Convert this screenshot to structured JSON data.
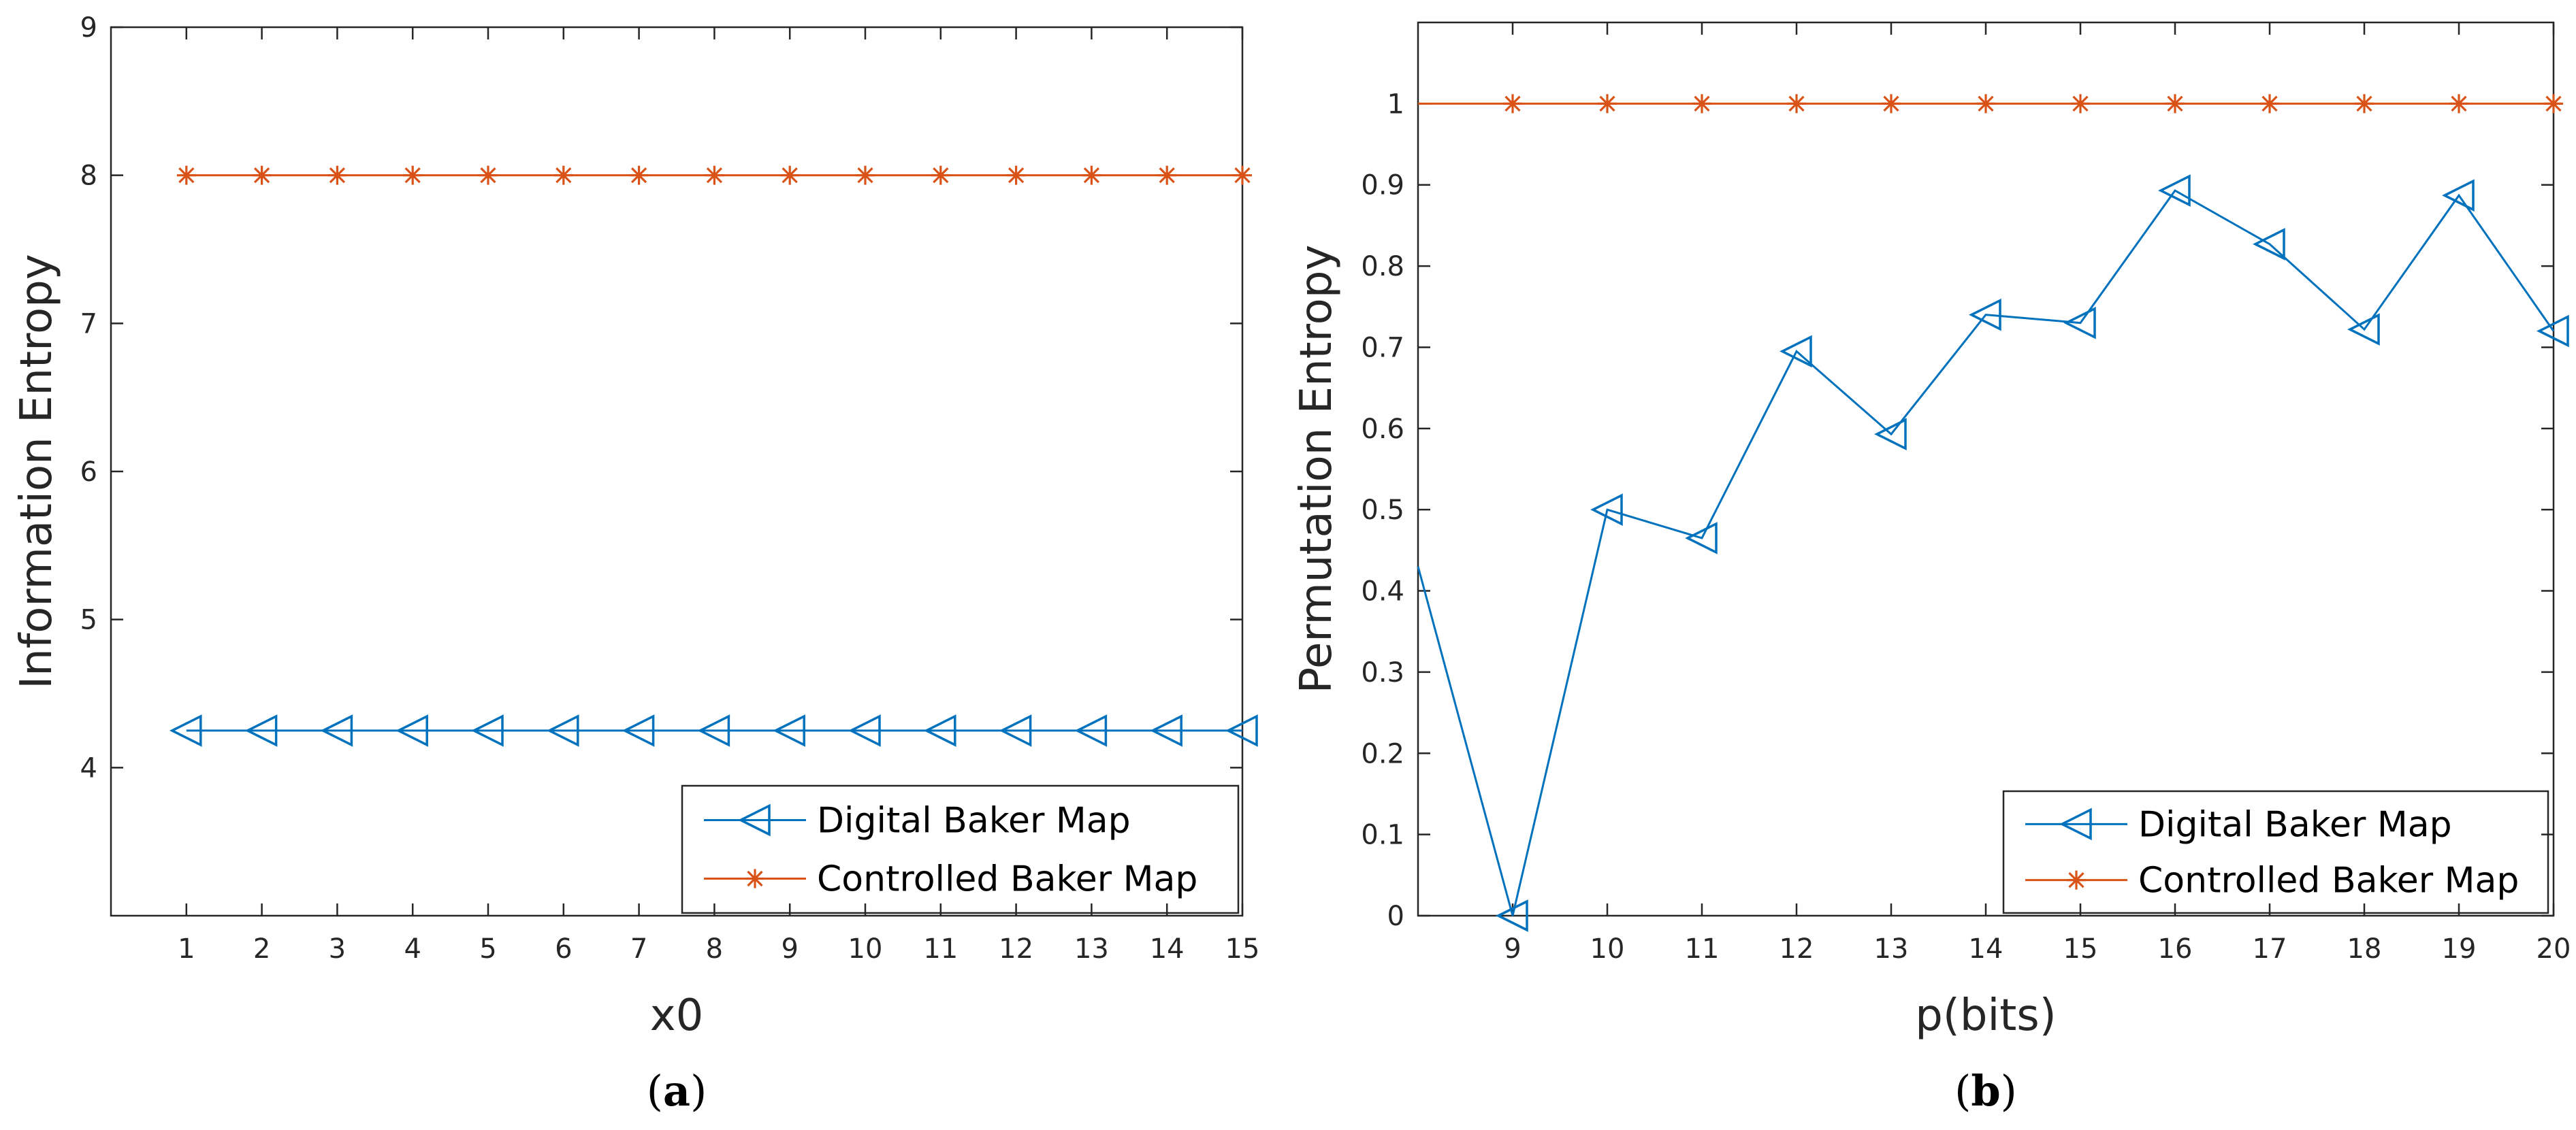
{
  "colors": {
    "digital": "#0072BD",
    "controlled": "#D95319",
    "axis": "#262626"
  },
  "chart_data": [
    {
      "type": "line",
      "panel_label": "a",
      "xlabel": "x0",
      "ylabel": "Information Entropy",
      "xlim": [
        0,
        15
      ],
      "ylim": [
        3,
        9
      ],
      "xticks": [
        1,
        2,
        3,
        4,
        5,
        6,
        7,
        8,
        9,
        10,
        11,
        12,
        13,
        14,
        15
      ],
      "yticks": [
        4,
        5,
        6,
        7,
        8,
        9
      ],
      "legend_position": "bottom-right",
      "series": [
        {
          "name": "Digital Baker Map",
          "marker": "triangle-left",
          "x": [
            1,
            2,
            3,
            4,
            5,
            6,
            7,
            8,
            9,
            10,
            11,
            12,
            13,
            14,
            15
          ],
          "values": [
            4.25,
            4.25,
            4.25,
            4.25,
            4.25,
            4.25,
            4.25,
            4.25,
            4.25,
            4.25,
            4.25,
            4.25,
            4.25,
            4.25,
            4.25
          ]
        },
        {
          "name": "Controlled Baker Map",
          "marker": "asterisk",
          "x": [
            1,
            2,
            3,
            4,
            5,
            6,
            7,
            8,
            9,
            10,
            11,
            12,
            13,
            14,
            15
          ],
          "values": [
            8,
            8,
            8,
            8,
            8,
            8,
            8,
            8,
            8,
            8,
            8,
            8,
            8,
            8,
            8
          ]
        }
      ]
    },
    {
      "type": "line",
      "panel_label": "b",
      "xlabel": "p(bits)",
      "ylabel": "Permutation Entropy",
      "xlim": [
        8,
        20
      ],
      "ylim": [
        0,
        1.1
      ],
      "xticks": [
        9,
        10,
        11,
        12,
        13,
        14,
        15,
        16,
        17,
        18,
        19,
        20
      ],
      "yticks": [
        0,
        0.1,
        0.2,
        0.3,
        0.4,
        0.5,
        0.6,
        0.7,
        0.8,
        0.9,
        1
      ],
      "legend_position": "bottom-right",
      "series": [
        {
          "name": "Digital Baker Map",
          "marker": "triangle-left",
          "x": [
            8,
            9,
            10,
            11,
            12,
            13,
            14,
            15,
            16,
            17,
            18,
            19,
            20
          ],
          "values": [
            0.43,
            0.0,
            0.5,
            0.465,
            0.695,
            0.593,
            0.74,
            0.73,
            0.893,
            0.827,
            0.722,
            0.887,
            0.72
          ],
          "marker_mask": [
            false,
            true,
            true,
            true,
            true,
            true,
            true,
            true,
            true,
            true,
            true,
            true,
            true
          ]
        },
        {
          "name": "Controlled Baker Map",
          "marker": "asterisk",
          "x": [
            8,
            9,
            10,
            11,
            12,
            13,
            14,
            15,
            16,
            17,
            18,
            19,
            20
          ],
          "values": [
            1,
            1,
            1,
            1,
            1,
            1,
            1,
            1,
            1,
            1,
            1,
            1,
            1
          ],
          "marker_mask": [
            false,
            true,
            true,
            true,
            true,
            true,
            true,
            true,
            true,
            true,
            true,
            true,
            true
          ]
        }
      ]
    }
  ]
}
